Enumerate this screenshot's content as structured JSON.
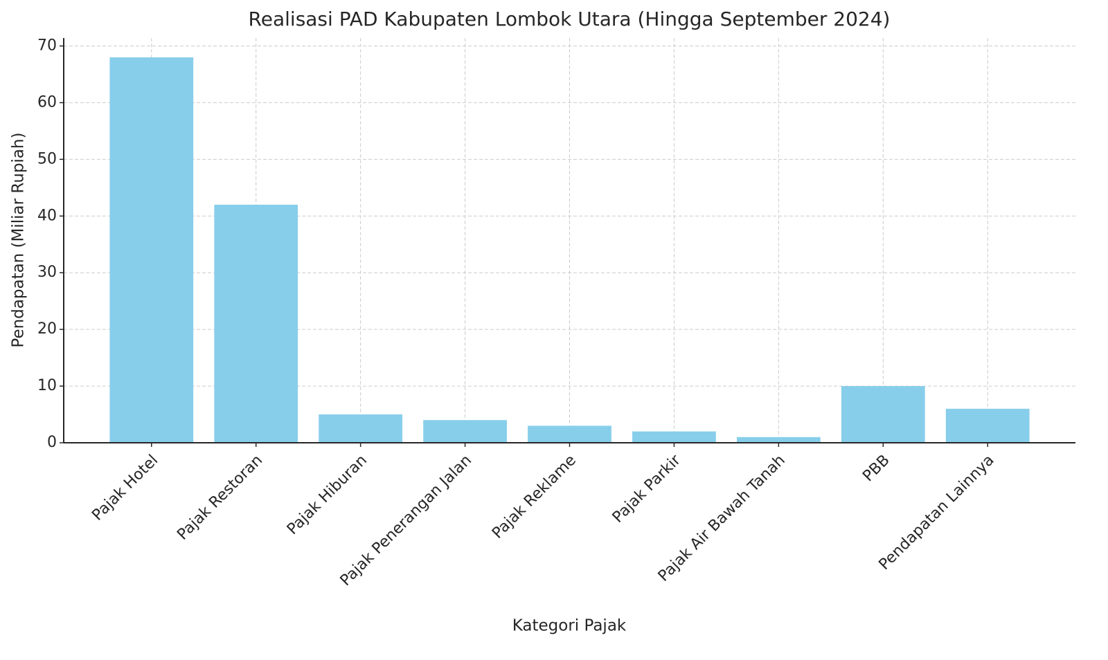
{
  "chart_data": {
    "type": "bar",
    "title": "Realisasi PAD Kabupaten Lombok Utara (Hingga September 2024)",
    "x_label": "Kategori Pajak",
    "y_label": "Pendapatan (Miliar Rupiah)",
    "categories": [
      "Pajak Hotel",
      "Pajak Restoran",
      "Pajak Hiburan",
      "Pajak Penerangan Jalan",
      "Pajak Reklame",
      "Pajak Parkir",
      "Pajak Air Bawah Tanah",
      "PBB",
      "Pendapatan Lainnya"
    ],
    "values": [
      68,
      42,
      5,
      4,
      3,
      2,
      1,
      10,
      6
    ],
    "color": "#87ceeb",
    "ylim": [
      0,
      71.4
    ],
    "yticks": [
      0,
      10,
      20,
      30,
      40,
      50,
      60,
      70
    ],
    "grid": true
  }
}
